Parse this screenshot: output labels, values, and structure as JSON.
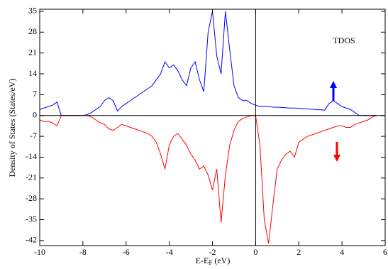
{
  "chart_data": {
    "type": "line",
    "ylabel": "Density of States (States/eV)",
    "xlabel": "E-E",
    "xlabel_sub": "F",
    "xlabel_unit": " (eV)",
    "annotation": "TDOS",
    "xlim": [
      -10,
      6
    ],
    "ylim": [
      -43.7,
      35.7
    ],
    "xticks": [
      -10,
      -8,
      -6,
      -4,
      -2,
      0,
      2,
      4,
      6
    ],
    "yticks": [
      -42,
      -35,
      -28,
      -21,
      -14,
      -7,
      0,
      7,
      14,
      21,
      28,
      35
    ],
    "vlines": [
      0
    ],
    "hlines": [
      0
    ],
    "x": [
      -10,
      -9.8,
      -9.6,
      -9.4,
      -9.2,
      -9,
      -8.8,
      -8.6,
      -8.4,
      -8.2,
      -8,
      -7.8,
      -7.6,
      -7.4,
      -7.2,
      -7,
      -6.8,
      -6.6,
      -6.4,
      -6.2,
      -6,
      -5.8,
      -5.6,
      -5.4,
      -5.2,
      -5,
      -4.8,
      -4.6,
      -4.4,
      -4.2,
      -4,
      -3.8,
      -3.6,
      -3.4,
      -3.2,
      -3,
      -2.8,
      -2.6,
      -2.4,
      -2.2,
      -2,
      -1.8,
      -1.6,
      -1.4,
      -1.2,
      -1,
      -0.8,
      -0.6,
      -0.4,
      -0.2,
      0,
      0.2,
      0.4,
      0.6,
      0.8,
      1,
      1.2,
      1.4,
      1.6,
      1.8,
      2,
      2.2,
      2.4,
      2.6,
      2.8,
      3,
      3.2,
      3.4,
      3.6,
      3.8,
      4,
      4.2,
      4.4,
      4.6,
      4.8,
      5,
      5.2,
      5.4,
      5.6
    ],
    "series": [
      {
        "color": "#0000ff",
        "values": [
          2,
          2.5,
          3,
          3.5,
          4.5,
          0,
          0,
          0,
          0,
          0,
          0,
          0.3,
          1,
          2,
          3,
          5,
          6,
          5,
          1.5,
          3,
          4,
          5,
          6,
          7,
          8,
          9,
          10,
          12,
          14,
          18,
          16,
          17,
          15,
          12,
          10,
          16,
          18,
          12,
          8,
          28,
          35,
          20,
          14,
          35,
          22,
          10,
          6,
          5,
          5,
          4,
          3.5,
          3,
          3,
          3,
          2.8,
          2.8,
          2.7,
          2.6,
          2.5,
          2.5,
          2.4,
          2.3,
          2.2,
          2.1,
          2,
          1.9,
          1.8,
          4,
          5,
          4,
          3,
          2.5,
          2,
          1,
          0,
          0,
          0,
          0,
          0
        ]
      },
      {
        "color": "#ff0000",
        "values": [
          -1.5,
          -2,
          -2,
          -2.5,
          -3.5,
          0,
          0,
          0,
          0,
          0,
          0,
          0,
          -0.5,
          -1.5,
          -2.5,
          -3,
          -4.5,
          -5,
          -4,
          -3,
          -3.5,
          -4,
          -4.5,
          -5,
          -5.5,
          -6,
          -7,
          -9,
          -13,
          -18,
          -10,
          -7,
          -6,
          -8,
          -10,
          -13,
          -15,
          -18,
          -17,
          -20,
          -25,
          -18,
          -36,
          -20,
          -10,
          -5,
          -2,
          -1,
          -0.5,
          0,
          0,
          -10,
          -35,
          -43,
          -30,
          -18,
          -15,
          -13,
          -12,
          -14,
          -9,
          -8,
          -7,
          -6.5,
          -6,
          -5.5,
          -5,
          -4.5,
          -4,
          -3.5,
          -3.5,
          -4,
          -4,
          -3,
          -2.5,
          -2,
          -1.5,
          -0.5,
          0
        ]
      }
    ]
  }
}
